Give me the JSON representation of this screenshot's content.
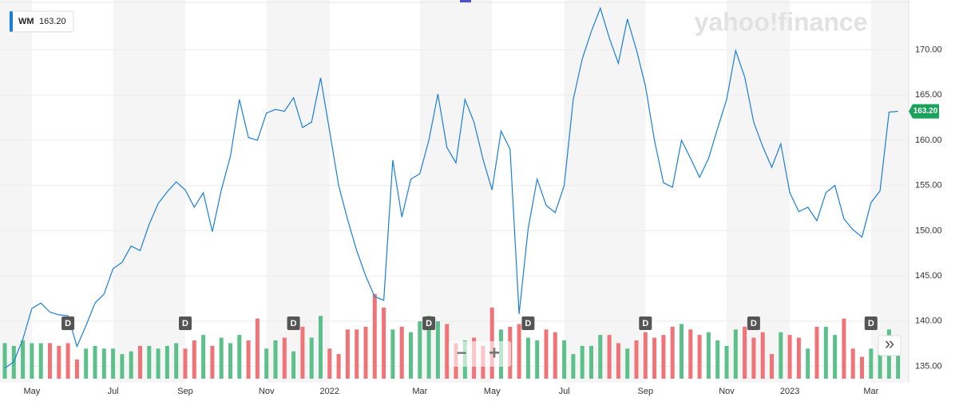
{
  "chart_data": {
    "type": "line",
    "symbol": "WM",
    "last_label": "163.20",
    "watermark": "yahoo!finance",
    "zoom_out": "−",
    "zoom_in": "+",
    "more": "»",
    "categories": [
      null,
      null,
      null,
      "May",
      null,
      null,
      null,
      null,
      null,
      null,
      null,
      null,
      "Jul",
      null,
      null,
      null,
      null,
      null,
      null,
      null,
      "Sep",
      null,
      null,
      null,
      null,
      null,
      null,
      null,
      null,
      "Nov",
      null,
      null,
      null,
      null,
      null,
      null,
      "2022",
      null,
      null,
      null,
      null,
      null,
      null,
      null,
      null,
      null,
      "Mar",
      null,
      null,
      null,
      null,
      null,
      null,
      null,
      "May",
      null,
      null,
      null,
      null,
      null,
      null,
      null,
      "Jul",
      null,
      null,
      null,
      null,
      null,
      null,
      null,
      null,
      "Sep",
      null,
      null,
      null,
      null,
      null,
      null,
      null,
      null,
      "Nov",
      null,
      null,
      null,
      null,
      null,
      null,
      "2023",
      null,
      null,
      null,
      null,
      null,
      null,
      null,
      null,
      "Mar",
      null,
      null,
      null
    ],
    "series": [
      {
        "name": "WM",
        "color": "#1a7fdb",
        "values": [
          134.8,
          135.5,
          138,
          141.4,
          142,
          141,
          140.7,
          140.6,
          137.2,
          139.5,
          142,
          143,
          145.8,
          146.5,
          148.3,
          147.8,
          150.7,
          153,
          154.3,
          155.4,
          154.5,
          152.6,
          154.2,
          149.9,
          154.5,
          158.2,
          164.5,
          160.3,
          160,
          163,
          163.4,
          163.2,
          164.7,
          161.4,
          162,
          166.9,
          161,
          155,
          151.2,
          147.8,
          145,
          142.7,
          142.3,
          157.8,
          151.5,
          155.7,
          156.3,
          160,
          165.1,
          159.2,
          157.5,
          164.5,
          162,
          157.9,
          154.5,
          161,
          159,
          140.8,
          150.2,
          155.7,
          152.8,
          152,
          155,
          164.5,
          169,
          172,
          174.6,
          171.3,
          168.5,
          173.4,
          170,
          166,
          160,
          155.3,
          154.8,
          160,
          158,
          155.9,
          158,
          161.3,
          164.5,
          169.9,
          167,
          162,
          159.3,
          157,
          159.6,
          154.2,
          152.1,
          152.6,
          151.1,
          154.2,
          155,
          151.3,
          150.1,
          149.3,
          153.1,
          154.4,
          163.1,
          163.2
        ]
      },
      {
        "name": "Volume",
        "up_color": "#5cc08b",
        "down_color": "#f07378",
        "values": [
          1.3,
          1.2,
          1.4,
          1.3,
          1.3,
          1.3,
          1.2,
          1.3,
          0.7,
          1.1,
          1.2,
          1.1,
          1.1,
          0.9,
          1.0,
          1.2,
          1.2,
          1.1,
          1.2,
          1.3,
          1.1,
          1.4,
          1.6,
          1.2,
          1.5,
          1.3,
          1.6,
          1.4,
          2.2,
          1.1,
          1.4,
          1.5,
          1.0,
          1.9,
          1.5,
          2.3,
          1.1,
          0.9,
          1.8,
          1.8,
          1.9,
          3.1,
          2.6,
          1.8,
          1.9,
          1.7,
          2.1,
          2.3,
          2.1,
          2.0,
          1.3,
          1.4,
          1.5,
          1.2,
          2.6,
          1.8,
          1.9,
          2.0,
          1.5,
          1.4,
          1.8,
          1.7,
          1.4,
          0.9,
          1.2,
          1.2,
          1.6,
          1.6,
          1.3,
          1.1,
          1.4,
          1.7,
          1.5,
          1.6,
          1.9,
          2.0,
          1.8,
          1.6,
          1.7,
          1.4,
          1.2,
          1.8,
          1.9,
          1.5,
          1.7,
          0.9,
          1.7,
          1.6,
          1.5,
          1.1,
          1.9,
          1.9,
          1.6,
          2.2,
          1.1,
          0.8,
          1.1,
          1.5,
          1.8,
          1.4
        ]
      }
    ],
    "ylim": [
      133.2,
      175.5
    ],
    "yticks": [
      {
        "value": 135,
        "label": "135.00"
      },
      {
        "value": 140,
        "label": "140.00"
      },
      {
        "value": 145,
        "label": "145.00"
      },
      {
        "value": 150,
        "label": "150.00"
      },
      {
        "value": 155,
        "label": "155.00"
      },
      {
        "value": 160,
        "label": "160.00"
      },
      {
        "value": 165,
        "label": "165.00"
      },
      {
        "value": 170,
        "label": "170.00"
      }
    ],
    "volume_lim": [
      0,
      3.5
    ],
    "events": [
      {
        "index": 7,
        "label": "D"
      },
      {
        "index": 20,
        "label": "D"
      },
      {
        "index": 32,
        "label": "D"
      },
      {
        "index": 47,
        "label": "D"
      },
      {
        "index": 58,
        "label": "D"
      },
      {
        "index": 71,
        "label": "D"
      },
      {
        "index": 83,
        "label": "D"
      },
      {
        "index": 96,
        "label": "D"
      }
    ],
    "grid": true
  }
}
